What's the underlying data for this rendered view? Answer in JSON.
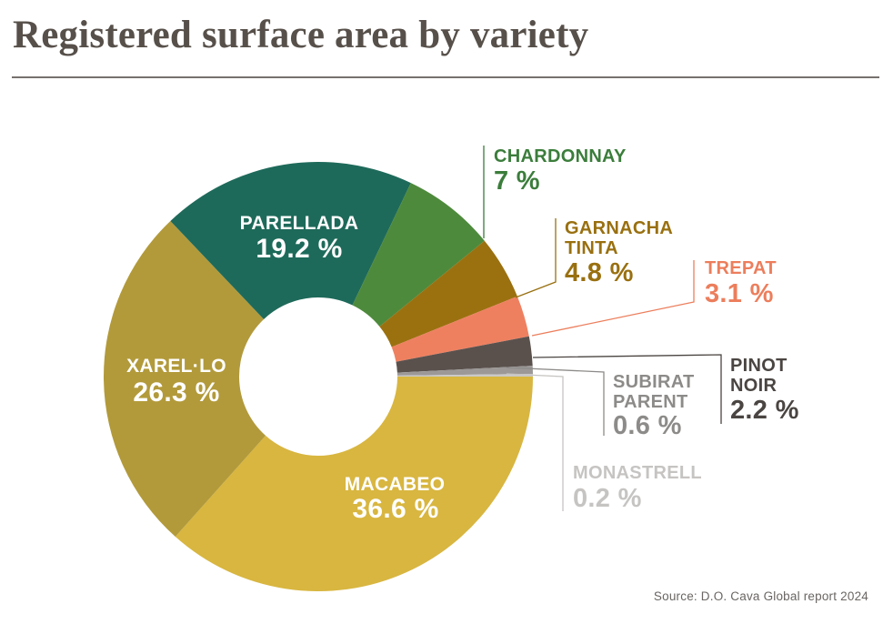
{
  "header": {
    "title": "Registered surface area by variety"
  },
  "source": {
    "text": "Source: D.O. Cava Global report 2024"
  },
  "chart_data": {
    "type": "pie",
    "variant": "donut",
    "title": "Registered surface area by variety",
    "units": "%",
    "direction": "clockwise",
    "start_angle_deg_from_top_clockwise": 90,
    "legend_position": "none",
    "inside_label_color": "#ffffff",
    "slices": [
      {
        "name": "MACABEO",
        "name_lines": [
          "MACABEO"
        ],
        "value": 36.6,
        "display": "36.6 %",
        "color": "#d8b640",
        "label_color": "#ffffff",
        "label_placement": "inside"
      },
      {
        "name": "XAREL·LO",
        "name_lines": [
          "XAREL·LO"
        ],
        "value": 26.3,
        "display": "26.3 %",
        "color": "#b29a3b",
        "label_color": "#ffffff",
        "label_placement": "inside"
      },
      {
        "name": "PARELLADA",
        "name_lines": [
          "PARELLADA"
        ],
        "value": 19.2,
        "display": "19.2 %",
        "color": "#1e6a5a",
        "label_color": "#ffffff",
        "label_placement": "inside"
      },
      {
        "name": "CHARDONNAY",
        "name_lines": [
          "CHARDONNAY"
        ],
        "value": 7,
        "display": "7 %",
        "color": "#4e8a3c",
        "label_color": "#3b7d3b",
        "label_placement": "callout"
      },
      {
        "name": "GARNACHA TINTA",
        "name_lines": [
          "GARNACHA",
          "TINTA"
        ],
        "value": 4.8,
        "display": "4.8 %",
        "color": "#9b7110",
        "label_color": "#997010",
        "label_placement": "callout"
      },
      {
        "name": "TREPAT",
        "name_lines": [
          "TREPAT"
        ],
        "value": 3.1,
        "display": "3.1 %",
        "color": "#ee8060",
        "label_color": "#ec7e5c",
        "label_placement": "callout"
      },
      {
        "name": "PINOT NOIR",
        "name_lines": [
          "PINOT",
          "NOIR"
        ],
        "value": 2.2,
        "display": "2.2 %",
        "color": "#5a514d",
        "label_color": "#4a4542",
        "label_placement": "callout"
      },
      {
        "name": "SUBIRAT PARENT",
        "name_lines": [
          "SUBIRAT",
          "PARENT"
        ],
        "value": 0.6,
        "display": "0.6 %",
        "color": "#9b9897",
        "label_color": "#8d8b89",
        "label_placement": "callout"
      },
      {
        "name": "MONASTRELL",
        "name_lines": [
          "MONASTRELL"
        ],
        "value": 0.2,
        "display": "0.2 %",
        "color": "#cbc9c7",
        "label_color": "#c6c4c2",
        "label_placement": "callout"
      }
    ]
  }
}
